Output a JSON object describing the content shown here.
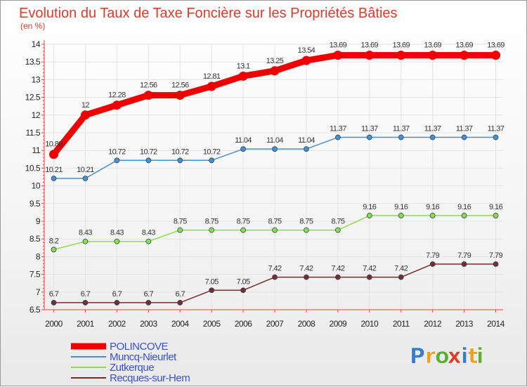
{
  "chart_data": {
    "type": "line",
    "title": "Evolution du Taux de Taxe Foncière sur les Propriétés Bâties",
    "subtitle": "(en %)",
    "xlabel": "",
    "ylabel": "(en %)",
    "ylim": [
      6.5,
      14
    ],
    "yticks": [
      "6.5",
      "7",
      "7.5",
      "8",
      "8.5",
      "9",
      "9.5",
      "10",
      "10.5",
      "11",
      "11.5",
      "12",
      "12.5",
      "13",
      "13.5",
      "14"
    ],
    "x": [
      "2000",
      "2001",
      "2002",
      "2003",
      "2004",
      "2005",
      "2006",
      "2007",
      "2008",
      "2009",
      "2010",
      "2011",
      "2012",
      "2013",
      "2014"
    ],
    "series": [
      {
        "name": "POLINCOVE",
        "color": "#ee0000",
        "values": [
          10.89,
          12,
          12.28,
          12.56,
          12.56,
          12.81,
          13.1,
          13.25,
          13.54,
          13.69,
          13.69,
          13.69,
          13.69,
          13.69,
          13.69
        ],
        "labels": [
          "10.89",
          "12",
          "12.28",
          "12.56",
          "12.56",
          "12.81",
          "13.1",
          "13.25",
          "13.54",
          "13.69",
          "13.69",
          "13.69",
          "13.69",
          "13.69",
          "13.69"
        ]
      },
      {
        "name": "Muncq-Nieurlet",
        "color": "#4a90c8",
        "values": [
          10.21,
          10.21,
          10.72,
          10.72,
          10.72,
          10.72,
          11.04,
          11.04,
          11.04,
          11.37,
          11.37,
          11.37,
          11.37,
          11.37,
          11.37
        ],
        "labels": [
          "10.21",
          "10.21",
          "10.72",
          "10.72",
          "10.72",
          "10.72",
          "11.04",
          "11.04",
          "11.04",
          "11.37",
          "11.37",
          "11.37",
          "11.37",
          "11.37",
          "11.37"
        ]
      },
      {
        "name": "Zutkerque",
        "color": "#8edc4a",
        "values": [
          8.2,
          8.43,
          8.43,
          8.43,
          8.75,
          8.75,
          8.75,
          8.75,
          8.75,
          8.75,
          9.16,
          9.16,
          9.16,
          9.16,
          9.16
        ],
        "labels": [
          "8.2",
          "8.43",
          "8.43",
          "8.43",
          "8.75",
          "8.75",
          "8.75",
          "8.75",
          "8.75",
          "8.75",
          "9.16",
          "9.16",
          "9.16",
          "9.16",
          "9.16"
        ]
      },
      {
        "name": "Recques-sur-Hem",
        "color": "#7a2b2b",
        "values": [
          6.7,
          6.7,
          6.7,
          6.7,
          6.7,
          7.05,
          7.05,
          7.42,
          7.42,
          7.42,
          7.42,
          7.42,
          7.79,
          7.79,
          7.79
        ],
        "labels": [
          "6.7",
          "6.7",
          "6.7",
          "6.7",
          "6.7",
          "7.05",
          "7.05",
          "7.42",
          "7.42",
          "7.42",
          "7.42",
          "7.42",
          "7.79",
          "7.79",
          "7.79"
        ]
      }
    ],
    "legend": "bottom-left",
    "grid": true
  },
  "logo": {
    "letters": [
      "P",
      "r",
      "o",
      "x",
      "i",
      "t",
      "i"
    ],
    "colors": [
      "#3b7dc4",
      "#f0a020",
      "#5bb030",
      "#e03a2a",
      "#3b7dc4",
      "#f0a020",
      "#5bb030"
    ]
  }
}
